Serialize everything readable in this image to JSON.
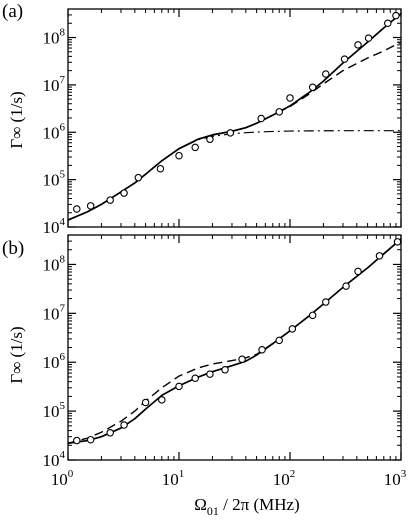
{
  "chart_data": [
    {
      "type": "line",
      "panel_label": "(a)",
      "x_scale": "log",
      "y_scale": "log",
      "xlim": [
        1,
        1000
      ],
      "ylim": [
        10000,
        400000000
      ],
      "ylabel": "Γ∞ (1/s)",
      "xlabel": "",
      "x_ticks": [
        {
          "base": "10",
          "exp": "0",
          "value": 1
        },
        {
          "base": "10",
          "exp": "1",
          "value": 10
        },
        {
          "base": "10",
          "exp": "2",
          "value": 100
        },
        {
          "base": "10",
          "exp": "3",
          "value": 1000
        }
      ],
      "y_ticks": [
        {
          "base": "10",
          "exp": "4",
          "value": 10000
        },
        {
          "base": "10",
          "exp": "5",
          "value": 100000
        },
        {
          "base": "10",
          "exp": "6",
          "value": 1000000
        },
        {
          "base": "10",
          "exp": "7",
          "value": 10000000
        },
        {
          "base": "10",
          "exp": "8",
          "value": 100000000
        }
      ],
      "series": [
        {
          "style": "solid",
          "x": [
            1.0,
            1.5,
            2,
            3,
            4,
            5,
            7,
            10,
            15,
            20,
            30,
            40,
            50,
            70,
            100,
            150,
            200,
            300,
            500,
            700,
            1000
          ],
          "y": [
            14000,
            21000,
            30000,
            55000,
            85000,
            130000,
            250000,
            450000,
            720000,
            880000,
            1050000,
            1250000,
            1550000,
            2300000,
            3600000,
            7000000,
            12000000,
            29000000,
            80000000,
            160000000,
            320000000
          ]
        },
        {
          "style": "dashed",
          "x": [
            1.0,
            1.5,
            2,
            3,
            4,
            5,
            7,
            10,
            15,
            20,
            30,
            40,
            50,
            70,
            100,
            150,
            200,
            300,
            500,
            700,
            1000
          ],
          "y": [
            14000,
            21000,
            30000,
            55000,
            85000,
            130000,
            250000,
            450000,
            720000,
            880000,
            1050000,
            1250000,
            1550000,
            2300000,
            3500000,
            6500000,
            10500000,
            20000000,
            37000000,
            52000000,
            80000000
          ]
        },
        {
          "style": "dash-dot",
          "x": [
            1.0,
            1.5,
            2,
            3,
            4,
            5,
            7,
            10,
            15,
            20,
            30,
            40,
            50,
            70,
            100,
            150,
            200,
            300,
            500,
            700,
            1000
          ],
          "y": [
            14000,
            21000,
            30000,
            55000,
            85000,
            130000,
            250000,
            450000,
            700000,
            820000,
            930000,
            980000,
            1010000,
            1040000,
            1060000,
            1070000,
            1075000,
            1080000,
            1080000,
            1080000,
            1080000
          ]
        },
        {
          "style": "markers",
          "x": [
            1.2,
            1.6,
            2.4,
            3.2,
            4.3,
            6.8,
            10,
            14,
            19,
            29,
            55,
            80,
            100,
            160,
            210,
            310,
            410,
            510,
            760,
            900
          ],
          "y": [
            24000,
            28000,
            37000,
            52000,
            110000,
            170000,
            320000,
            480000,
            710000,
            970000,
            1950000,
            2700000,
            5300000,
            8900000,
            17000000,
            35000000,
            70000000,
            97000000,
            200000000,
            290000000
          ]
        }
      ]
    },
    {
      "type": "line",
      "panel_label": "(b)",
      "x_scale": "log",
      "y_scale": "log",
      "xlim": [
        1,
        1000
      ],
      "ylim": [
        10000,
        400000000
      ],
      "ylabel": "Γ∞ (1/s)",
      "xlabel": "Ω01 / 2π (MHz)",
      "xlabel_parts": {
        "pre": "Ω",
        "sub": "01",
        "post": " / 2π (MHz)"
      },
      "x_ticks": [
        {
          "base": "10",
          "exp": "0",
          "value": 1
        },
        {
          "base": "10",
          "exp": "1",
          "value": 10
        },
        {
          "base": "10",
          "exp": "2",
          "value": 100
        },
        {
          "base": "10",
          "exp": "3",
          "value": 1000
        }
      ],
      "y_ticks": [
        {
          "base": "10",
          "exp": "4",
          "value": 10000
        },
        {
          "base": "10",
          "exp": "5",
          "value": 100000
        },
        {
          "base": "10",
          "exp": "6",
          "value": 1000000
        },
        {
          "base": "10",
          "exp": "7",
          "value": 10000000
        },
        {
          "base": "10",
          "exp": "8",
          "value": 100000000
        }
      ],
      "series": [
        {
          "style": "solid",
          "x": [
            1.0,
            1.5,
            2,
            3,
            4,
            5,
            7,
            10,
            15,
            20,
            30,
            40,
            50,
            70,
            100,
            150,
            200,
            300,
            500,
            700,
            1000
          ],
          "y": [
            22000,
            25000,
            30000,
            45000,
            70000,
            110000,
            210000,
            330000,
            500000,
            640000,
            850000,
            1050000,
            1400000,
            2400000,
            4400000,
            9000000,
            15500000,
            34000000,
            85000000,
            165000000,
            330000000
          ]
        },
        {
          "style": "dashed",
          "x": [
            1.0,
            1.5,
            2,
            3,
            4,
            5,
            7,
            10,
            15,
            20,
            30,
            40,
            50,
            70,
            100
          ],
          "y": [
            22000,
            28000,
            37000,
            62000,
            100000,
            160000,
            300000,
            520000,
            770000,
            920000,
            1080000,
            1230000,
            1450000,
            2400000,
            4400000
          ]
        },
        {
          "style": "markers",
          "x": [
            1.2,
            1.6,
            2.4,
            3.2,
            5,
            7,
            10,
            14,
            19,
            26,
            37,
            56,
            80,
            105,
            160,
            210,
            320,
            410,
            640,
            930
          ],
          "y": [
            25000,
            26000,
            36000,
            52000,
            150000,
            170000,
            320000,
            470000,
            570000,
            700000,
            1150000,
            1800000,
            2800000,
            4800000,
            9100000,
            17000000,
            36000000,
            72000000,
            150000000,
            290000000
          ]
        }
      ]
    }
  ]
}
